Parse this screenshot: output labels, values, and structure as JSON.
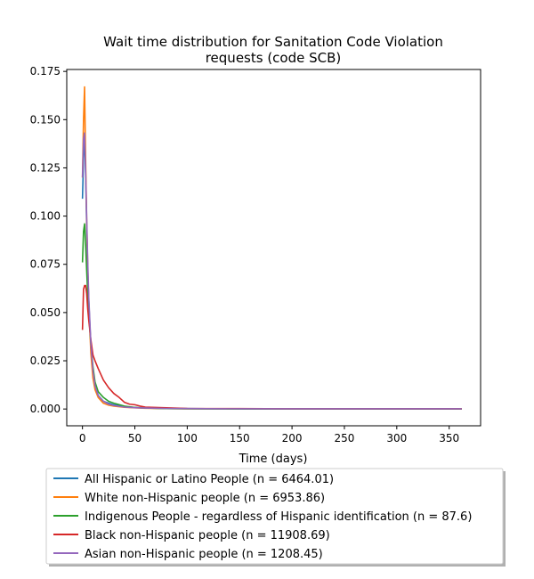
{
  "chart_data": {
    "type": "line",
    "title_lines": [
      "Wait time distribution  for Sanitation Code Violation",
      "requests (code SCB)"
    ],
    "xlabel": "Time (days)",
    "ylabel": "",
    "xlim": [
      -15,
      380
    ],
    "ylim": [
      -0.0087,
      0.176
    ],
    "xticks": [
      0,
      50,
      100,
      150,
      200,
      250,
      300,
      350
    ],
    "yticks": [
      0.0,
      0.025,
      0.05,
      0.075,
      0.1,
      0.125,
      0.15,
      0.175
    ],
    "ytick_labels": [
      "0.000",
      "0.025",
      "0.050",
      "0.075",
      "0.100",
      "0.125",
      "0.150",
      "0.175"
    ],
    "grid": false,
    "legend_position": "below plot",
    "series": [
      {
        "name": "All Hispanic or Latino People (n = 6464.01)",
        "color": "#1f77b4",
        "x": [
          0,
          1,
          2,
          3,
          4,
          5,
          6,
          8,
          10,
          12,
          15,
          20,
          25,
          30,
          40,
          50,
          60,
          80,
          100,
          150,
          200,
          250,
          300,
          362
        ],
        "y": [
          0.109,
          0.13,
          0.143,
          0.122,
          0.095,
          0.072,
          0.056,
          0.033,
          0.019,
          0.012,
          0.007,
          0.004,
          0.003,
          0.0022,
          0.0012,
          0.0008,
          0.0005,
          0.0003,
          0.0002,
          0.0001,
          0.0001,
          0.0001,
          0.0001,
          0.0001
        ]
      },
      {
        "name": "White non-Hispanic people (n = 6953.86)",
        "color": "#ff7f0e",
        "x": [
          0,
          1,
          2,
          3,
          4,
          5,
          6,
          8,
          10,
          12,
          15,
          20,
          25,
          30,
          40,
          50,
          60,
          80,
          100,
          150,
          200,
          250,
          300,
          362
        ],
        "y": [
          0.12,
          0.15,
          0.167,
          0.13,
          0.098,
          0.074,
          0.054,
          0.029,
          0.016,
          0.01,
          0.006,
          0.003,
          0.002,
          0.0015,
          0.0009,
          0.0006,
          0.0004,
          0.0002,
          0.0001,
          0.0001,
          0.0001,
          0.0001,
          0.0001,
          0.0001
        ]
      },
      {
        "name": "Indigenous People - regardless of Hispanic identification (n = 87.6)",
        "color": "#2ca02c",
        "x": [
          0,
          1,
          2,
          3,
          4,
          5,
          6,
          8,
          10,
          12,
          15,
          20,
          25,
          30,
          40,
          50,
          60,
          80,
          100,
          150,
          200,
          250,
          300,
          362
        ],
        "y": [
          0.076,
          0.092,
          0.096,
          0.085,
          0.072,
          0.06,
          0.05,
          0.034,
          0.022,
          0.014,
          0.009,
          0.006,
          0.004,
          0.003,
          0.0015,
          0.0008,
          0.0005,
          0.0002,
          0.0001,
          0.0,
          0.0,
          0.0,
          0.0,
          0.0
        ]
      },
      {
        "name": "Black non-Hispanic people (n = 11908.69)",
        "color": "#d62728",
        "x": [
          0,
          1,
          2,
          3,
          4,
          5,
          6,
          8,
          10,
          12,
          15,
          20,
          25,
          30,
          35,
          40,
          45,
          50,
          55,
          60,
          70,
          80,
          100,
          150,
          200,
          250,
          300,
          362
        ],
        "y": [
          0.041,
          0.062,
          0.064,
          0.064,
          0.06,
          0.052,
          0.046,
          0.036,
          0.028,
          0.025,
          0.021,
          0.015,
          0.011,
          0.008,
          0.006,
          0.0035,
          0.0025,
          0.0022,
          0.0015,
          0.001,
          0.0008,
          0.0006,
          0.0003,
          0.0002,
          0.0001,
          0.0001,
          0.0001,
          0.0001
        ]
      },
      {
        "name": "Asian non-Hispanic people (n = 1208.45)",
        "color": "#9467bd",
        "x": [
          0,
          1,
          2,
          3,
          4,
          5,
          6,
          8,
          10,
          12,
          15,
          20,
          25,
          30,
          40,
          50,
          60,
          80,
          100,
          150,
          200,
          250,
          300,
          362
        ],
        "y": [
          0.12,
          0.14,
          0.143,
          0.124,
          0.1,
          0.077,
          0.058,
          0.034,
          0.02,
          0.012,
          0.007,
          0.004,
          0.0025,
          0.0018,
          0.001,
          0.0007,
          0.0005,
          0.0003,
          0.0002,
          0.0001,
          0.0001,
          0.0001,
          0.0001,
          0.0001
        ]
      }
    ]
  }
}
